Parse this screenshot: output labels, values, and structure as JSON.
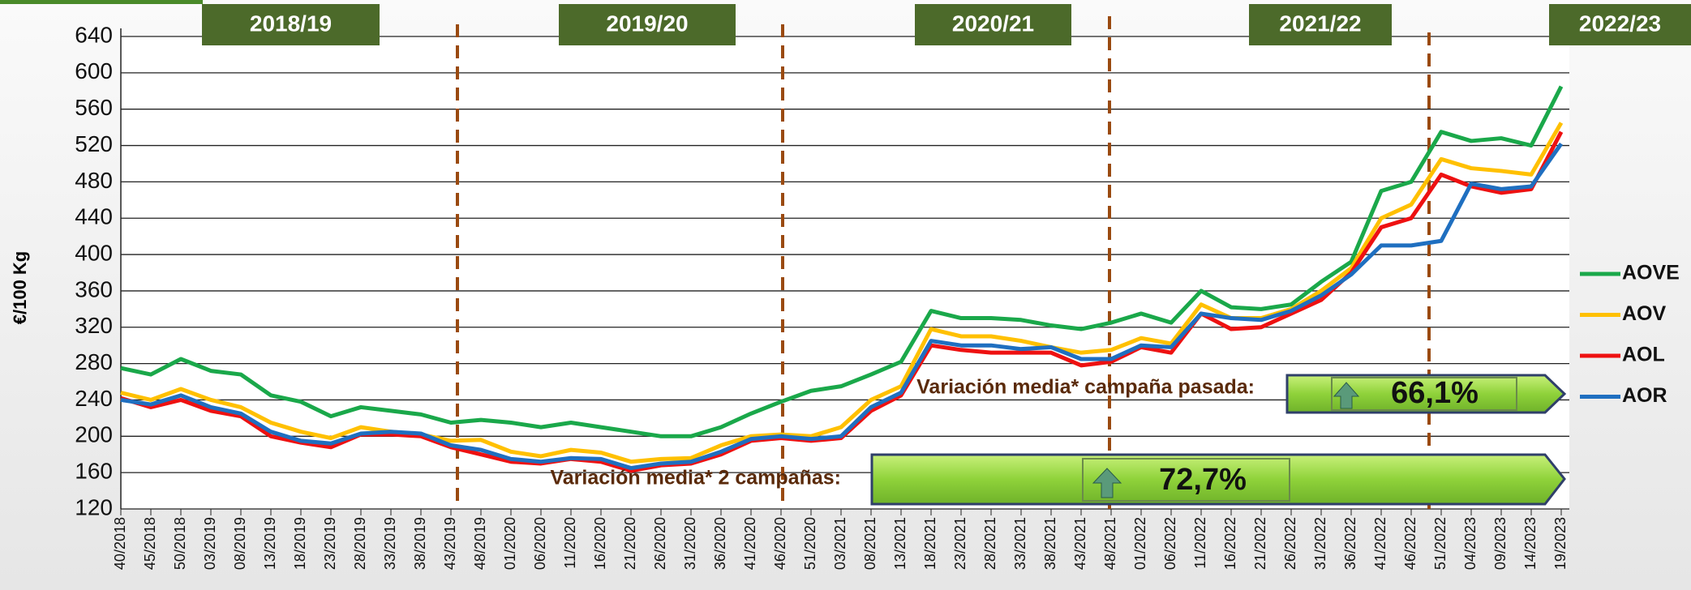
{
  "chart_data": {
    "type": "line",
    "y_label": "€/100 Kg",
    "categories": [
      "40/2018",
      "45/2018",
      "50/2018",
      "03/2019",
      "08/2019",
      "13/2019",
      "18/2019",
      "23/2019",
      "28/2019",
      "33/2019",
      "38/2019",
      "43/2019",
      "48/2019",
      "01/2020",
      "06/2020",
      "11/2020",
      "16/2020",
      "21/2020",
      "26/2020",
      "31/2020",
      "36/2020",
      "41/2020",
      "46/2020",
      "51/2020",
      "03/2021",
      "08/2021",
      "13/2021",
      "18/2021",
      "23/2021",
      "28/2021",
      "33/2021",
      "38/2021",
      "43/2021",
      "48/2021",
      "01/2022",
      "06/2022",
      "11/2022",
      "16/2022",
      "21/2022",
      "26/2022",
      "31/2022",
      "36/2022",
      "41/2022",
      "46/2022",
      "51/2022",
      "04/2023",
      "09/2023",
      "14/2023",
      "19/2023"
    ],
    "series": [
      {
        "name": "AOVE",
        "color": "#1aa84a",
        "values": [
          275,
          268,
          285,
          272,
          268,
          245,
          238,
          222,
          232,
          228,
          224,
          215,
          218,
          215,
          210,
          215,
          210,
          205,
          200,
          200,
          210,
          225,
          238,
          250,
          255,
          268,
          282,
          338,
          330,
          330,
          328,
          322,
          318,
          325,
          335,
          325,
          360,
          342,
          340,
          345,
          370,
          392,
          470,
          480,
          535,
          525,
          528,
          520,
          585
        ]
      },
      {
        "name": "AOV",
        "color": "#ffc000",
        "values": [
          248,
          240,
          252,
          240,
          232,
          215,
          205,
          198,
          210,
          205,
          202,
          195,
          196,
          183,
          178,
          185,
          182,
          172,
          175,
          176,
          190,
          200,
          202,
          200,
          210,
          240,
          255,
          318,
          310,
          310,
          305,
          298,
          292,
          295,
          308,
          302,
          345,
          330,
          330,
          340,
          360,
          385,
          440,
          455,
          505,
          495,
          492,
          488,
          545
        ]
      },
      {
        "name": "AOL",
        "color": "#ee1111",
        "values": [
          242,
          232,
          240,
          228,
          222,
          200,
          193,
          188,
          202,
          202,
          200,
          188,
          180,
          172,
          170,
          175,
          172,
          162,
          168,
          170,
          180,
          195,
          198,
          195,
          198,
          228,
          245,
          300,
          295,
          292,
          292,
          292,
          278,
          282,
          298,
          292,
          335,
          318,
          320,
          335,
          350,
          380,
          430,
          440,
          488,
          475,
          468,
          472,
          535
        ]
      },
      {
        "name": "AOR",
        "color": "#1f6fc0",
        "values": [
          240,
          235,
          245,
          232,
          225,
          205,
          195,
          192,
          203,
          205,
          203,
          190,
          185,
          175,
          172,
          176,
          175,
          165,
          170,
          172,
          183,
          197,
          200,
          197,
          200,
          232,
          248,
          305,
          300,
          300,
          296,
          298,
          285,
          285,
          300,
          298,
          335,
          330,
          328,
          338,
          355,
          378,
          410,
          410,
          415,
          478,
          472,
          475,
          522
        ]
      }
    ],
    "ylim": [
      120,
      640
    ],
    "yticks": [
      120,
      160,
      200,
      240,
      280,
      320,
      360,
      400,
      440,
      480,
      520,
      560,
      600,
      640
    ],
    "grid": true,
    "campaigns": [
      "2018/19",
      "2019/20",
      "2020/21",
      "2021/22",
      "2022/23"
    ],
    "annotations": [
      {
        "text": "Variación media* campaña pasada:",
        "value_label": "66,1%"
      },
      {
        "text": "Variación media* 2 campañas:",
        "value_label": "72,7%"
      }
    ]
  }
}
